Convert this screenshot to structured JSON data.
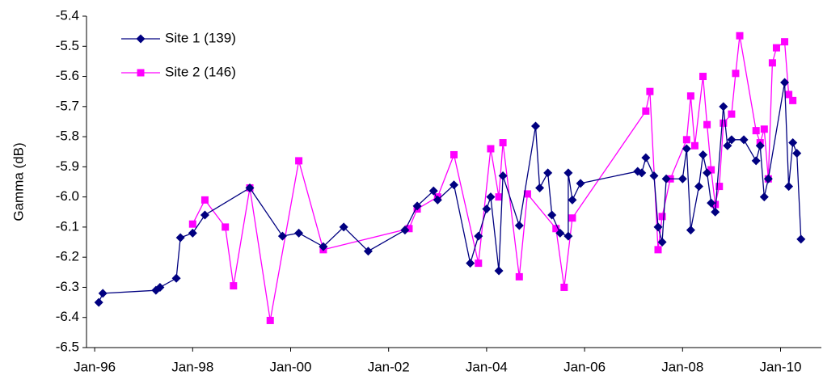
{
  "chart_data": {
    "type": "line",
    "y_label": "Gamma (dB)",
    "xlim": [
      "1995-11",
      "2010-11"
    ],
    "xticks": [
      {
        "value": "1996-01",
        "label": "Jan-96"
      },
      {
        "value": "1998-01",
        "label": "Jan-98"
      },
      {
        "value": "2000-01",
        "label": "Jan-00"
      },
      {
        "value": "2002-01",
        "label": "Jan-02"
      },
      {
        "value": "2004-01",
        "label": "Jan-04"
      },
      {
        "value": "2006-01",
        "label": "Jan-06"
      },
      {
        "value": "2008-01",
        "label": "Jan-08"
      },
      {
        "value": "2010-01",
        "label": "Jan-10"
      }
    ],
    "ylim": [
      -6.5,
      -5.4
    ],
    "yticks": [
      -6.5,
      -6.4,
      -6.3,
      -6.2,
      -6.1,
      {
        "value": -6.0,
        "label": "-6.0"
      },
      -5.9,
      -5.8,
      -5.7,
      -5.6,
      -5.5,
      -5.4
    ],
    "legend": "top-left",
    "series": [
      {
        "name": "Site 1 (139)",
        "color": "#000080",
        "marker": "diamond",
        "x": [
          "1996-02",
          "1996-03",
          "1997-04",
          "1997-05",
          "1997-09",
          "1997-10",
          "1998-01",
          "1998-04",
          "1999-03",
          "1999-11",
          "2000-03",
          "2000-09",
          "2001-02",
          "2001-08",
          "2002-05",
          "2002-08",
          "2002-12",
          "2003-01",
          "2003-05",
          "2003-09",
          "2003-11",
          "2004-01",
          "2004-02",
          "2004-04",
          "2004-05",
          "2004-09",
          "2005-01",
          "2005-02",
          "2005-04",
          "2005-05",
          "2005-07",
          "2005-09",
          "2005-09",
          "2005-10",
          "2005-12",
          "2007-02",
          "2007-03",
          "2007-04",
          "2007-06",
          "2007-07",
          "2007-08",
          "2007-09",
          "2008-01",
          "2008-02",
          "2008-03",
          "2008-05",
          "2008-06",
          "2008-07",
          "2008-08",
          "2008-09",
          "2008-11",
          "2008-12",
          "2009-01",
          "2009-04",
          "2009-07",
          "2009-08",
          "2009-09",
          "2009-10",
          "2010-02",
          "2010-03",
          "2010-04",
          "2010-05",
          "2010-06"
        ],
        "values": [
          -6.35,
          -6.32,
          -6.31,
          -6.3,
          -6.27,
          -6.135,
          -6.12,
          -6.06,
          -5.97,
          -6.13,
          -6.12,
          -6.165,
          -6.1,
          -6.18,
          -6.11,
          -6.03,
          -5.98,
          -6.01,
          -5.96,
          -6.22,
          -6.13,
          -6.04,
          -6.0,
          -6.245,
          -5.93,
          -6.095,
          -5.765,
          -5.97,
          -5.92,
          -6.06,
          -6.12,
          -6.13,
          -5.92,
          -6.01,
          -5.955,
          -5.915,
          -5.92,
          -5.87,
          -5.93,
          -6.1,
          -6.15,
          -5.94,
          -5.94,
          -5.84,
          -6.11,
          -5.965,
          -5.86,
          -5.92,
          -6.02,
          -6.05,
          -5.7,
          -5.83,
          -5.81,
          -5.81,
          -5.88,
          -5.83,
          -6.0,
          -5.94,
          -5.62,
          -5.965,
          -5.82,
          -5.855,
          -6.14
        ]
      },
      {
        "name": "Site 2 (146)",
        "color": "#ff00ff",
        "marker": "square",
        "x": [
          "1998-01",
          "1998-04",
          "1998-09",
          "1998-11",
          "1999-03",
          "1999-08",
          "2000-03",
          "2000-09",
          "2002-06",
          "2002-08",
          "2003-01",
          "2003-05",
          "2003-11",
          "2004-02",
          "2004-04",
          "2004-05",
          "2004-09",
          "2004-11",
          "2005-06",
          "2005-08",
          "2005-10",
          "2007-04",
          "2007-05",
          "2007-07",
          "2007-08",
          "2007-10",
          "2008-02",
          "2008-03",
          "2008-04",
          "2008-06",
          "2008-07",
          "2008-08",
          "2008-09",
          "2008-10",
          "2008-11",
          "2009-01",
          "2009-02",
          "2009-03",
          "2009-07",
          "2009-08",
          "2009-09",
          "2009-10",
          "2009-11",
          "2009-12",
          "2010-02",
          "2010-03",
          "2010-04"
        ],
        "values": [
          -6.09,
          -6.01,
          -6.1,
          -6.295,
          -5.97,
          -6.41,
          -5.88,
          -6.175,
          -6.105,
          -6.04,
          -6.0,
          -5.86,
          -6.22,
          -5.84,
          -6.0,
          -5.82,
          -6.265,
          -5.99,
          -6.105,
          -6.3,
          -6.07,
          -5.715,
          -5.65,
          -6.175,
          -6.065,
          -5.94,
          -5.81,
          -5.665,
          -5.83,
          -5.6,
          -5.76,
          -5.91,
          -6.025,
          -5.965,
          -5.755,
          -5.725,
          -5.59,
          -5.465,
          -5.78,
          -5.82,
          -5.775,
          -5.94,
          -5.555,
          -5.505,
          -5.485,
          -5.66,
          -5.68
        ]
      }
    ]
  }
}
